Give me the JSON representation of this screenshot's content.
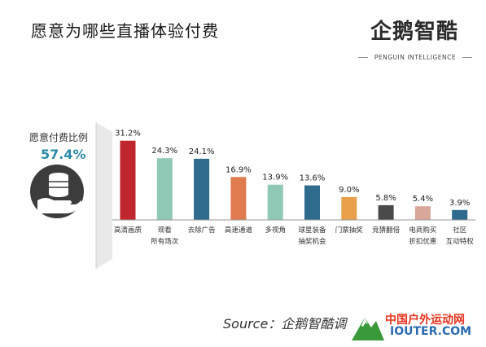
{
  "title": "愿意为哪些直播体验付费",
  "brand": {
    "name": "企鹅智酷",
    "subtitle": "PENGUIN INTELLIGENCE"
  },
  "summary": {
    "label": "愿意付费比例",
    "value": "57.4%"
  },
  "source": "Source：企鹅智酷调",
  "watermark": {
    "text": "中国户外运动网",
    "url": "IOUTER.COM"
  },
  "chart_data": {
    "type": "bar",
    "categories": [
      [
        "高清画质"
      ],
      [
        "观看",
        "所有场次"
      ],
      [
        "去除广告"
      ],
      [
        "高速通道"
      ],
      [
        "多视角"
      ],
      [
        "球星装备",
        "抽奖机会"
      ],
      [
        "门票抽奖"
      ],
      [
        "竞猜翻倍"
      ],
      [
        "电商购买",
        "折扣优惠"
      ],
      [
        "社区",
        "互动特权"
      ]
    ],
    "values": [
      31.2,
      24.3,
      24.1,
      16.9,
      13.9,
      13.6,
      9.0,
      5.8,
      5.4,
      3.9
    ],
    "value_labels": [
      "31.2%",
      "24.3%",
      "24.1%",
      "16.9%",
      "13.9%",
      "13.6%",
      "9.0%",
      "5.8%",
      "5.4%",
      "3.9%"
    ],
    "colors": [
      "#c0262d",
      "#8fc9b5",
      "#2f6b8c",
      "#e07a4f",
      "#8fc9b5",
      "#2f6b8c",
      "#e8a04a",
      "#4a4a4a",
      "#d9a79a",
      "#2f6b8c"
    ],
    "ylim": [
      0,
      34
    ]
  }
}
